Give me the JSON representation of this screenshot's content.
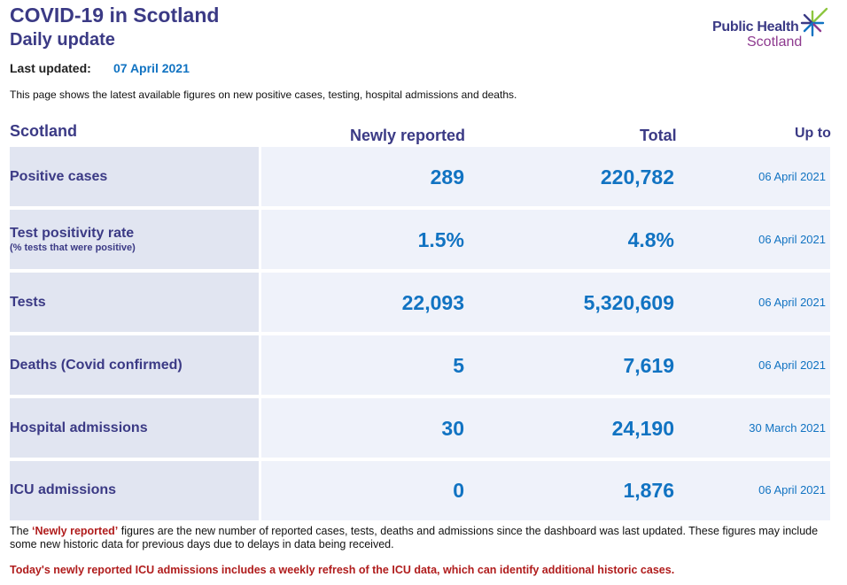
{
  "header": {
    "title": "COVID-19 in Scotland",
    "subtitle": "Daily update"
  },
  "logo": {
    "line1": "Public Health",
    "line2": "Scotland",
    "icon": "star-burst-icon",
    "colors": {
      "purple": "#3b3a85",
      "magenta": "#8e3a8f",
      "green": "#8dc63f",
      "blue": "#1173c2"
    }
  },
  "updated": {
    "label": "Last updated:",
    "value": "07 April 2021"
  },
  "intro": "This page shows the latest available figures on new positive cases, testing, hospital admissions and deaths.",
  "table": {
    "headers": {
      "region": "Scotland",
      "new": "Newly reported",
      "total": "Total",
      "upto": "Up to"
    },
    "rows": [
      {
        "name": "Positive cases",
        "sub": "",
        "new": "289",
        "total": "220,782",
        "upto": "06 April 2021"
      },
      {
        "name": "Test positivity rate",
        "sub": "(% tests that were positive)",
        "new": "1.5%",
        "total": "4.8%",
        "upto": "06 April 2021"
      },
      {
        "name": "Tests",
        "sub": "",
        "new": "22,093",
        "total": "5,320,609",
        "upto": "06 April 2021"
      },
      {
        "name": "Deaths (Covid confirmed)",
        "sub": "",
        "new": "5",
        "total": "7,619",
        "upto": "06 April 2021"
      },
      {
        "name": "Hospital admissions",
        "sub": "",
        "new": "30",
        "total": "24,190",
        "upto": "30 March 2021"
      },
      {
        "name": "ICU admissions",
        "sub": "",
        "new": "0",
        "total": "1,876",
        "upto": "06 April 2021"
      }
    ]
  },
  "footnote": {
    "prefix": "The ",
    "highlight": "‘Newly reported’",
    "rest": " figures are the new number of reported cases, tests, deaths and admissions since the dashboard was last updated. These figures may include some new historic data for previous days due to delays in data being received."
  },
  "alert": "Today's newly reported ICU admissions includes a weekly refresh of the ICU data, which can identify additional historic cases.",
  "colors": {
    "heading": "#3b3a85",
    "value": "#1173c2",
    "alert": "#b01c1c",
    "label_cell": "#e1e5f1",
    "value_cell": "#eff2fa"
  }
}
